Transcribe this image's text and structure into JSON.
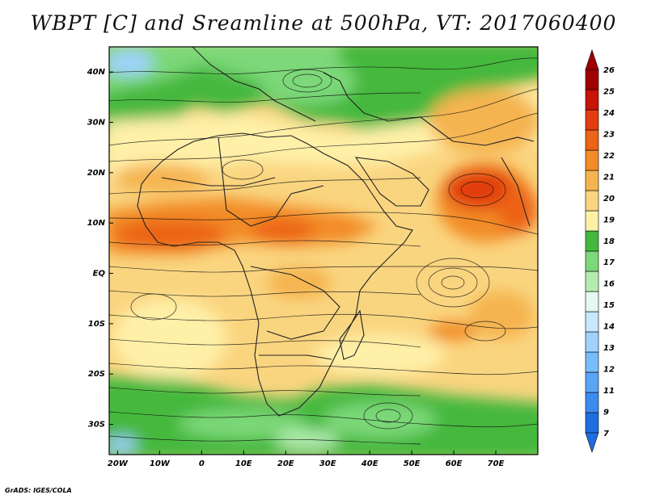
{
  "title": "WBPT [C] and Sreamline at 500hPa, VT: 2017060400",
  "footer": "GrADS: IGES/COLA",
  "map": {
    "lon_range": [
      -22,
      80
    ],
    "lat_range": [
      -36,
      45
    ],
    "lon_ticks": [
      {
        "value": -20,
        "label": "20W"
      },
      {
        "value": -10,
        "label": "10W"
      },
      {
        "value": 0,
        "label": "0"
      },
      {
        "value": 10,
        "label": "10E"
      },
      {
        "value": 20,
        "label": "20E"
      },
      {
        "value": 30,
        "label": "30E"
      },
      {
        "value": 40,
        "label": "40E"
      },
      {
        "value": 50,
        "label": "50E"
      },
      {
        "value": 60,
        "label": "60E"
      },
      {
        "value": 70,
        "label": "70E"
      }
    ],
    "lat_ticks": [
      {
        "value": 40,
        "label": "40N"
      },
      {
        "value": 30,
        "label": "30N"
      },
      {
        "value": 20,
        "label": "20N"
      },
      {
        "value": 10,
        "label": "10N"
      },
      {
        "value": 0,
        "label": "EQ"
      },
      {
        "value": -10,
        "label": "10S"
      },
      {
        "value": -20,
        "label": "20S"
      },
      {
        "value": -30,
        "label": "30S"
      }
    ]
  },
  "colorbar": {
    "labels": [
      "7",
      "9",
      "11",
      "12",
      "13",
      "14",
      "15",
      "16",
      "17",
      "18",
      "19",
      "20",
      "21",
      "22",
      "23",
      "24",
      "25",
      "26"
    ],
    "colors": [
      "#1e6ee0",
      "#3c8cf0",
      "#5aa5f5",
      "#78bcfa",
      "#a0d2fc",
      "#c8e8fd",
      "#e6f7ee",
      "#b4ecb0",
      "#7cd878",
      "#44b83e",
      "#fff0a8",
      "#fad580",
      "#f5b450",
      "#f28c28",
      "#ec6418",
      "#e23c10",
      "#c81408",
      "#a00000"
    ]
  }
}
